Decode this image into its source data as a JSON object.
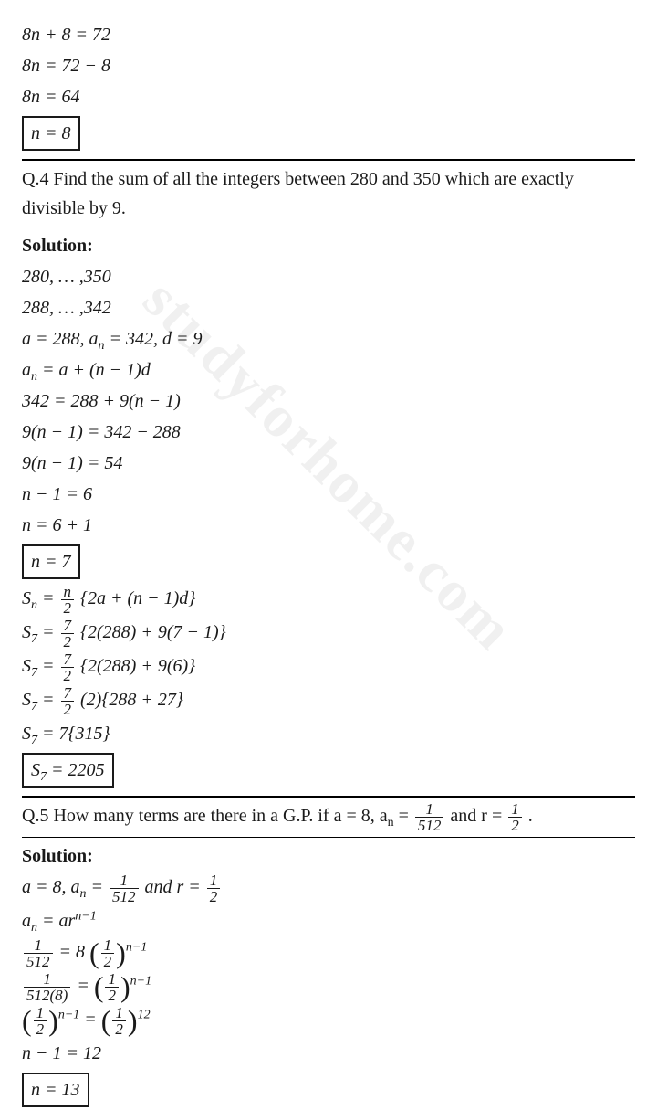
{
  "watermark": "studyforhome.com",
  "intro": {
    "l1": "8n + 8 = 72",
    "l2": "8n = 72 − 8",
    "l3": "8n = 64",
    "box": "n = 8"
  },
  "q4": {
    "text": "Q.4 Find the sum of all the integers between 280 and 350 which are exactly divisible by 9.",
    "sol": "Solution:",
    "l1": "280, … ,350",
    "l2": "288, … ,342",
    "l3a": "a = 288, a",
    "l3b": " = 342, d = 9",
    "l4a": "a",
    "l4b": " = a + (n − 1)d",
    "l5": "342 = 288 + 9(n − 1)",
    "l6": "9(n − 1) = 342 − 288",
    "l7": "9(n − 1) = 54",
    "l8": "n − 1 = 6",
    "l9": "n = 6 + 1",
    "box1": "n = 7",
    "sn_lhs": "S",
    "sn_eq": " = ",
    "sn_num": "n",
    "sn_den": "2",
    "sn_rhs": "{2a + (n − 1)d}",
    "s7_lhs": "S",
    "s7_eq": " = ",
    "s7_num": "7",
    "s7_den": "2",
    "s7_rhs1": "{2(288) + 9(7 − 1)}",
    "s7_rhs2": "{2(288) + 9(6)}",
    "s7_rhs3": "(2){288 + 27}",
    "s7_final": " = 7{315}",
    "box2_lhs": "S",
    "box2_rhs": " = 2205"
  },
  "q5": {
    "text_a": "Q.5 How many terms are there in a G.P. if a = 8, a",
    "text_b": " = ",
    "f1n": "1",
    "f1d": "512",
    "text_c": " and r = ",
    "f2n": "1",
    "f2d": "2",
    "text_d": ".",
    "sol": "Solution:",
    "g1a": "a = 8, a",
    "g1b": " = ",
    "g1c": " and r = ",
    "g2a": "a",
    "g2b": " = ar",
    "g2exp": "n−1",
    "g3_eq": " = 8",
    "g4_eq": " = ",
    "g5a": "n−1",
    "g5b": " = ",
    "g5c": "12",
    "g6": "n − 1 = 12",
    "box": "n = 13"
  },
  "sub_n": "n",
  "sub_7": "7"
}
